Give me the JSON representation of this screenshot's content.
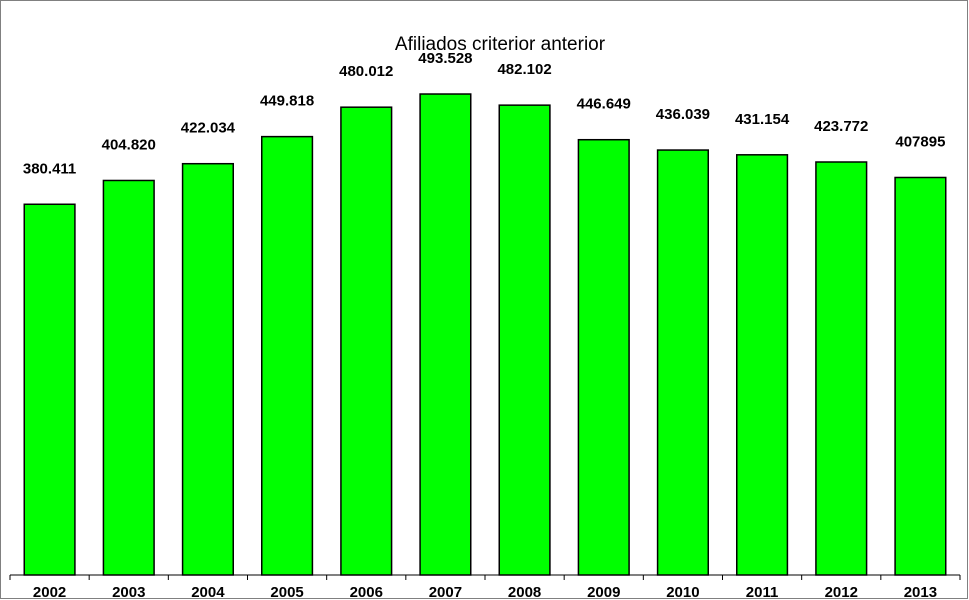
{
  "chart_data": {
    "type": "bar",
    "title": "Afiliados criterior anterior",
    "categories": [
      "2002",
      "2003",
      "2004",
      "2005",
      "2006",
      "2007",
      "2008",
      "2009",
      "2010",
      "2011",
      "2012",
      "2013"
    ],
    "values": [
      380411,
      404820,
      422034,
      449818,
      480012,
      493528,
      482102,
      446649,
      436039,
      431154,
      423772,
      407895
    ],
    "data_labels": [
      "380.411",
      "404.820",
      "422.034",
      "449.818",
      "480.012",
      "493.528",
      "482.102",
      "446.649",
      "436.039",
      "431.154",
      "423.772",
      "407895"
    ],
    "xlabel": "",
    "ylabel": "",
    "ylim": [
      0,
      590000
    ],
    "grid": false,
    "legend": "none",
    "colors": {
      "bar_fill": "#00ff00",
      "bar_stroke": "#000000",
      "frame": "#808080"
    }
  }
}
